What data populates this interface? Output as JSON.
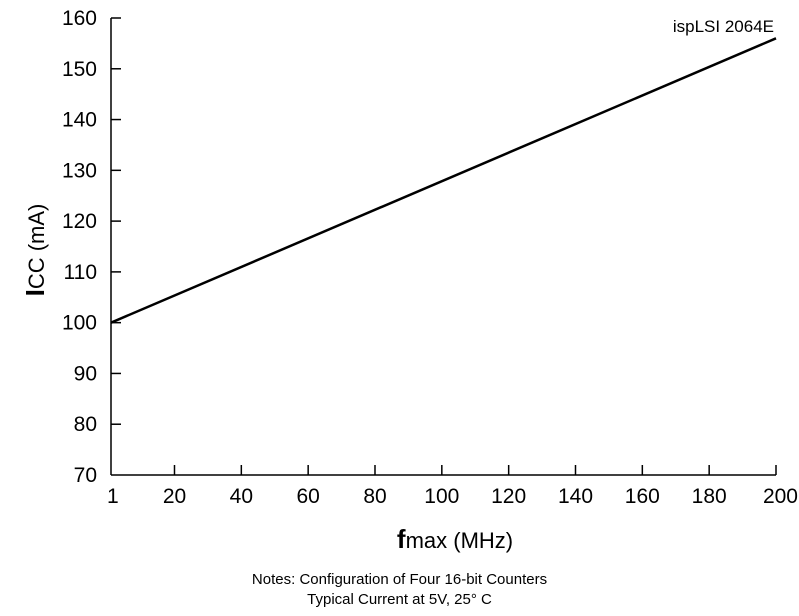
{
  "chart_data": {
    "type": "line",
    "title": "",
    "annotation": "ispLSI 2064E",
    "xlabel": {
      "main": "f",
      "sub": "max (MHz)"
    },
    "ylabel": {
      "main": "I",
      "sub": "CC (mA)"
    },
    "x_ticks": [
      "1",
      "20",
      "40",
      "60",
      "80",
      "100",
      "120",
      "140",
      "160",
      "180",
      "200"
    ],
    "y_ticks": [
      "70",
      "80",
      "90",
      "100",
      "110",
      "120",
      "130",
      "140",
      "150",
      "160"
    ],
    "xlim": [
      1,
      200
    ],
    "ylim": [
      70,
      160
    ],
    "grid": false,
    "series": [
      {
        "x": [
          1,
          200
        ],
        "y": [
          100,
          156
        ]
      }
    ],
    "line_color": "#000000"
  },
  "notes": {
    "line1": "Notes: Configuration of Four 16-bit Counters",
    "line2": "Typical Current at 5V, 25° C"
  }
}
